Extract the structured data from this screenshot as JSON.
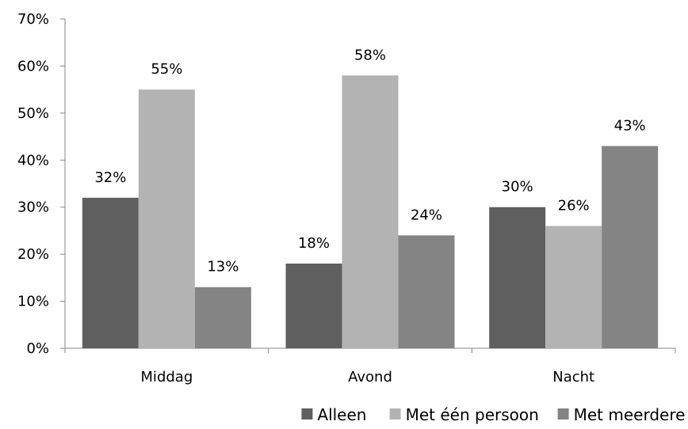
{
  "chart_data": {
    "type": "bar",
    "title": "",
    "xlabel": "",
    "ylabel": "",
    "categories": [
      "Middag",
      "Avond",
      "Nacht"
    ],
    "series": [
      {
        "name": "Alleen",
        "values": [
          32,
          18,
          30
        ],
        "color": "#5f5f5f",
        "labels": [
          "32%",
          "18%",
          "30%"
        ]
      },
      {
        "name": "Met één persoon",
        "values": [
          55,
          58,
          26
        ],
        "color": "#b3b3b3",
        "labels": [
          "55%",
          "58%",
          "26%"
        ]
      },
      {
        "name": "Met meerdere",
        "values": [
          13,
          24,
          43
        ],
        "color": "#848484",
        "labels": [
          "13%",
          "24%",
          "43%"
        ]
      }
    ],
    "ylim": [
      0,
      70
    ],
    "yticks": [
      0,
      10,
      20,
      30,
      40,
      50,
      60,
      70
    ],
    "ytick_labels": [
      "0%",
      "10%",
      "20%",
      "30%",
      "40%",
      "50%",
      "60%",
      "70%"
    ],
    "grid": false,
    "legend_position": "bottom-right"
  }
}
